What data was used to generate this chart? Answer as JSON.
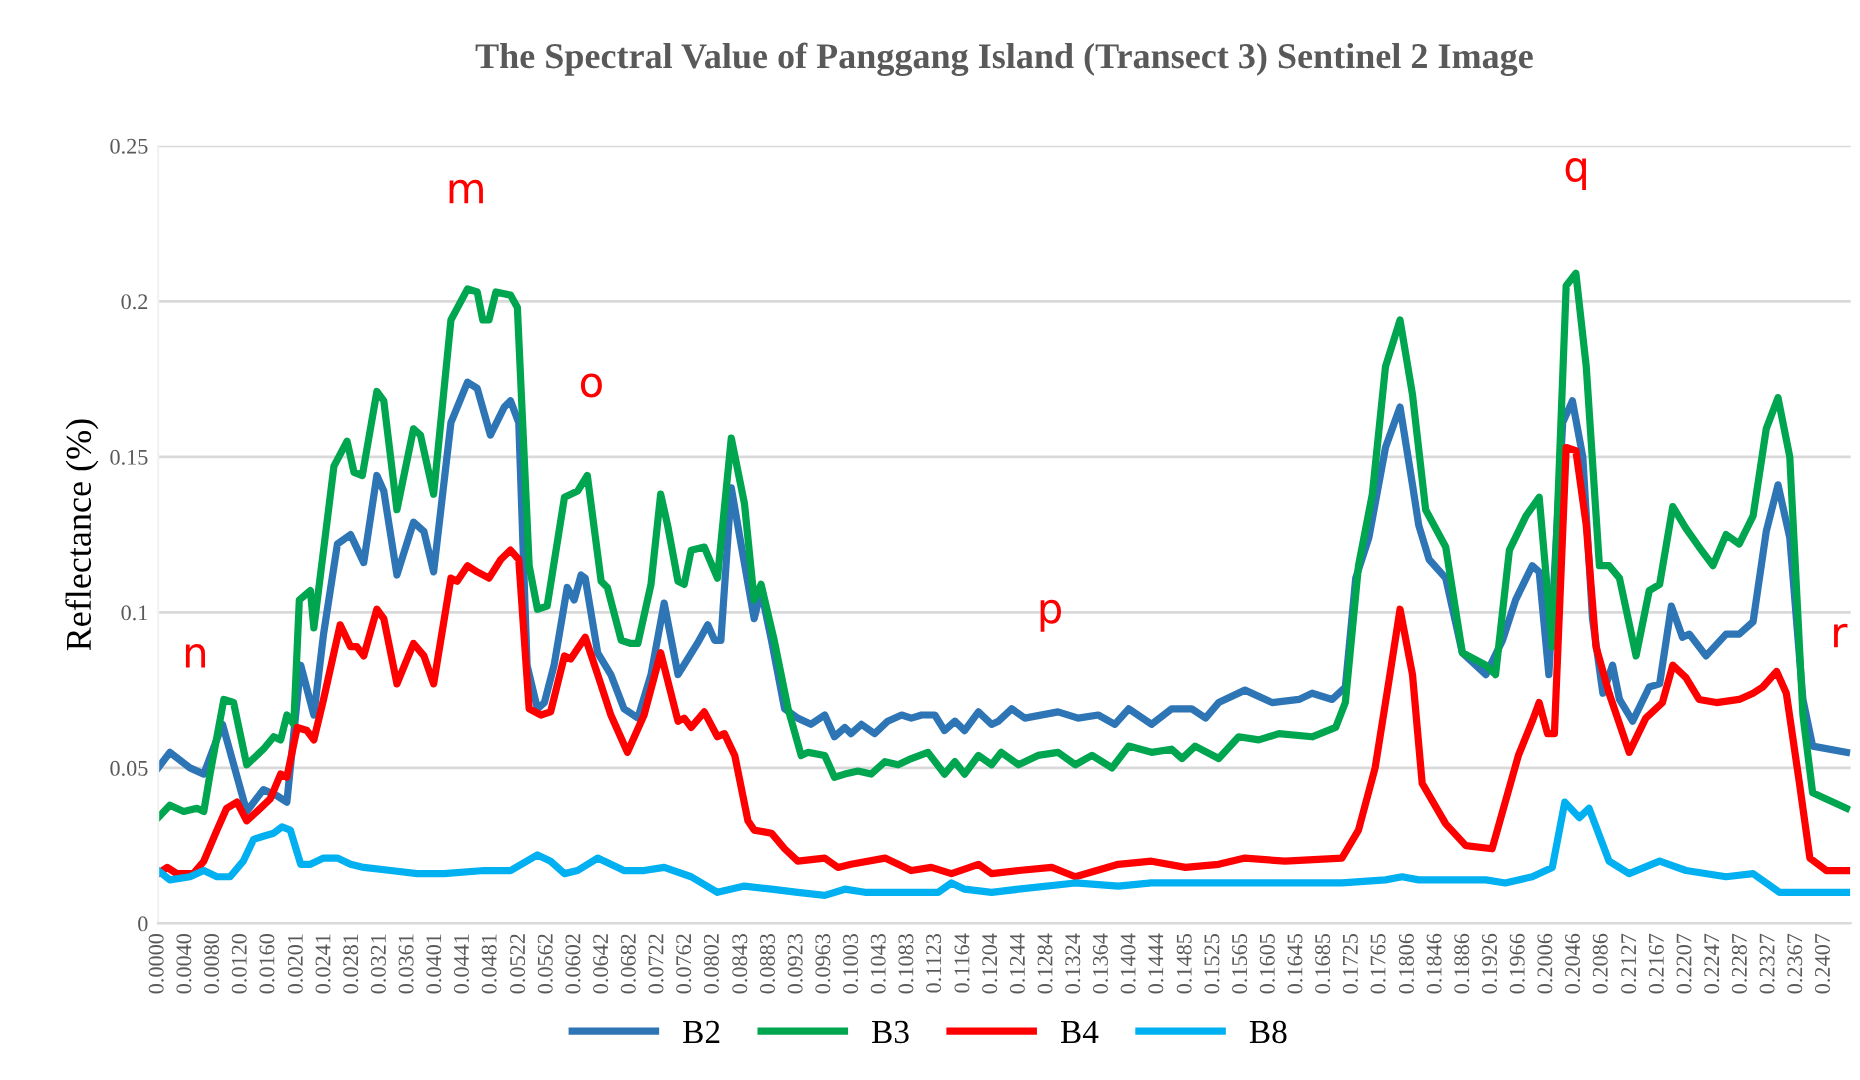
{
  "chart_data": {
    "type": "line",
    "title": "The Spectral Value of Panggang Island (Transect 3) Sentinel 2 Image",
    "ylabel": "Reflectance (%)",
    "xlim": [
      0,
      0.2445
    ],
    "ylim": [
      0,
      0.25
    ],
    "yticks": [
      {
        "value": 0,
        "label": "0"
      },
      0.05,
      0.1,
      0.15,
      0.2,
      0.25
    ],
    "xticks": [
      {
        "value": 0.0,
        "label": "0.0000"
      },
      {
        "value": 0.004,
        "label": "0.0040"
      },
      {
        "value": 0.008,
        "label": "0.0080"
      },
      {
        "value": 0.012,
        "label": "0.0120"
      },
      {
        "value": 0.016,
        "label": "0.0160"
      },
      {
        "value": 0.0201,
        "label": "0.0201"
      },
      {
        "value": 0.0241,
        "label": "0.0241"
      },
      {
        "value": 0.0281,
        "label": "0.0281"
      },
      {
        "value": 0.0321,
        "label": "0.0321"
      },
      {
        "value": 0.0361,
        "label": "0.0361"
      },
      {
        "value": 0.0401,
        "label": "0.0401"
      },
      {
        "value": 0.0441,
        "label": "0.0441"
      },
      {
        "value": 0.0481,
        "label": "0.0481"
      },
      {
        "value": 0.0522,
        "label": "0.0522"
      },
      {
        "value": 0.0562,
        "label": "0.0562"
      },
      {
        "value": 0.0602,
        "label": "0.0602"
      },
      {
        "value": 0.0642,
        "label": "0.0642"
      },
      {
        "value": 0.0682,
        "label": "0.0682"
      },
      {
        "value": 0.0722,
        "label": "0.0722"
      },
      {
        "value": 0.0762,
        "label": "0.0762"
      },
      {
        "value": 0.0802,
        "label": "0.0802"
      },
      {
        "value": 0.0843,
        "label": "0.0843"
      },
      {
        "value": 0.0883,
        "label": "0.0883"
      },
      {
        "value": 0.0923,
        "label": "0.0923"
      },
      {
        "value": 0.0963,
        "label": "0.0963"
      },
      {
        "value": 0.1003,
        "label": "0.1003"
      },
      {
        "value": 0.1043,
        "label": "0.1043"
      },
      {
        "value": 0.1083,
        "label": "0.1083"
      },
      {
        "value": 0.1123,
        "label": "0.1123"
      },
      {
        "value": 0.1164,
        "label": "0.1164"
      },
      {
        "value": 0.1204,
        "label": "0.1204"
      },
      {
        "value": 0.1244,
        "label": "0.1244"
      },
      {
        "value": 0.1284,
        "label": "0.1284"
      },
      {
        "value": 0.1324,
        "label": "0.1324"
      },
      {
        "value": 0.1364,
        "label": "0.1364"
      },
      {
        "value": 0.1404,
        "label": "0.1404"
      },
      {
        "value": 0.1444,
        "label": "0.1444"
      },
      {
        "value": 0.1485,
        "label": "0.1485"
      },
      {
        "value": 0.1525,
        "label": "0.1525"
      },
      {
        "value": 0.1565,
        "label": "0.1565"
      },
      {
        "value": 0.1605,
        "label": "0.1605"
      },
      {
        "value": 0.1645,
        "label": "0.1645"
      },
      {
        "value": 0.1685,
        "label": "0.1685"
      },
      {
        "value": 0.1725,
        "label": "0.1725"
      },
      {
        "value": 0.1765,
        "label": "0.1765"
      },
      {
        "value": 0.1806,
        "label": "0.1806"
      },
      {
        "value": 0.1846,
        "label": "0.1846"
      },
      {
        "value": 0.1886,
        "label": "0.1886"
      },
      {
        "value": 0.1926,
        "label": "0.1926"
      },
      {
        "value": 0.1966,
        "label": "0.1966"
      },
      {
        "value": 0.2006,
        "label": "0.2006"
      },
      {
        "value": 0.2046,
        "label": "0.2046"
      },
      {
        "value": 0.2086,
        "label": "0.2086"
      },
      {
        "value": 0.2127,
        "label": "0.2127"
      },
      {
        "value": 0.2167,
        "label": "0.2167"
      },
      {
        "value": 0.2207,
        "label": "0.2207"
      },
      {
        "value": 0.2247,
        "label": "0.2247"
      },
      {
        "value": 0.2287,
        "label": "0.2287"
      },
      {
        "value": 0.2327,
        "label": "0.2327"
      },
      {
        "value": 0.2367,
        "label": "0.2367"
      },
      {
        "value": 0.2407,
        "label": "0.2407"
      }
    ],
    "grid": "y",
    "legend": "bottom",
    "marker": "none",
    "line_style": "solid",
    "annotations": [
      "m",
      "n",
      "o",
      "p",
      "q",
      "r"
    ],
    "series": [
      {
        "name": "B2",
        "color": "#2e75b6",
        "x": [
          0,
          0.0017,
          0.0046,
          0.0066,
          0.0093,
          0.0128,
          0.0152,
          0.0172,
          0.0186,
          0.0206,
          0.0225,
          0.0239,
          0.0259,
          0.0278,
          0.0297,
          0.0316,
          0.0326,
          0.0345,
          0.0369,
          0.0384,
          0.0398,
          0.0423,
          0.0447,
          0.0461,
          0.048,
          0.05,
          0.0509,
          0.0521,
          0.0533,
          0.0548,
          0.0558,
          0.0572,
          0.0591,
          0.0601,
          0.0611,
          0.0617,
          0.0635,
          0.0654,
          0.0673,
          0.0693,
          0.0712,
          0.0731,
          0.0751,
          0.0765,
          0.0779,
          0.0794,
          0.0804,
          0.0813,
          0.0828,
          0.0842,
          0.0861,
          0.0871,
          0.0886,
          0.0905,
          0.0924,
          0.0943,
          0.0963,
          0.0977,
          0.0992,
          0.1001,
          0.1016,
          0.1035,
          0.1054,
          0.1074,
          0.1088,
          0.1103,
          0.1122,
          0.1136,
          0.1151,
          0.1165,
          0.1185,
          0.1204,
          0.1214,
          0.1233,
          0.1252,
          0.13,
          0.1329,
          0.1358,
          0.1382,
          0.1402,
          0.1435,
          0.1464,
          0.1493,
          0.1513,
          0.1532,
          0.157,
          0.1609,
          0.1648,
          0.1667,
          0.1696,
          0.1715,
          0.173,
          0.1749,
          0.1773,
          0.1794,
          0.1812,
          0.1821,
          0.1836,
          0.186,
          0.1884,
          0.1918,
          0.1942,
          0.1961,
          0.1985,
          0.1995,
          0.2009,
          0.2029,
          0.2043,
          0.2058,
          0.2072,
          0.2087,
          0.2101,
          0.2111,
          0.213,
          0.2154,
          0.2169,
          0.2186,
          0.2202,
          0.2212,
          0.2236,
          0.2265,
          0.2284,
          0.2304,
          0.2323,
          0.234,
          0.2357,
          0.2376,
          0.239,
          0.2439
        ],
        "values": [
          0.05,
          0.055,
          0.05,
          0.048,
          0.064,
          0.036,
          0.043,
          0.041,
          0.039,
          0.083,
          0.067,
          0.093,
          0.122,
          0.125,
          0.116,
          0.144,
          0.139,
          0.112,
          0.129,
          0.126,
          0.113,
          0.161,
          0.174,
          0.172,
          0.157,
          0.166,
          0.168,
          0.161,
          0.083,
          0.069,
          0.071,
          0.083,
          0.108,
          0.104,
          0.112,
          0.111,
          0.087,
          0.08,
          0.069,
          0.066,
          0.08,
          0.103,
          0.08,
          0.085,
          0.09,
          0.096,
          0.091,
          0.091,
          0.14,
          0.122,
          0.098,
          0.107,
          0.091,
          0.069,
          0.066,
          0.064,
          0.067,
          0.06,
          0.063,
          0.061,
          0.064,
          0.061,
          0.065,
          0.067,
          0.066,
          0.067,
          0.067,
          0.062,
          0.065,
          0.062,
          0.068,
          0.064,
          0.065,
          0.069,
          0.066,
          0.068,
          0.066,
          0.067,
          0.064,
          0.069,
          0.064,
          0.069,
          0.069,
          0.066,
          0.071,
          0.075,
          0.071,
          0.072,
          0.074,
          0.072,
          0.076,
          0.111,
          0.124,
          0.153,
          0.166,
          0.141,
          0.128,
          0.117,
          0.111,
          0.087,
          0.08,
          0.091,
          0.104,
          0.115,
          0.113,
          0.08,
          0.161,
          0.168,
          0.15,
          0.098,
          0.074,
          0.083,
          0.072,
          0.065,
          0.076,
          0.077,
          0.102,
          0.092,
          0.093,
          0.086,
          0.093,
          0.093,
          0.097,
          0.126,
          0.141,
          0.124,
          0.072,
          0.057,
          0.055
        ]
      },
      {
        "name": "B3",
        "color": "#00a64f",
        "x": [
          0,
          0.0017,
          0.0037,
          0.0056,
          0.0066,
          0.0075,
          0.0095,
          0.0109,
          0.0128,
          0.0152,
          0.0167,
          0.0177,
          0.0186,
          0.0196,
          0.0204,
          0.022,
          0.0225,
          0.0239,
          0.0254,
          0.0273,
          0.0283,
          0.0295,
          0.0316,
          0.0326,
          0.0345,
          0.0369,
          0.0379,
          0.0398,
          0.0423,
          0.0447,
          0.0461,
          0.0469,
          0.0478,
          0.0488,
          0.0509,
          0.0519,
          0.0536,
          0.0548,
          0.0562,
          0.0587,
          0.0606,
          0.062,
          0.064,
          0.0649,
          0.0669,
          0.0683,
          0.0693,
          0.0712,
          0.0726,
          0.0736,
          0.0751,
          0.076,
          0.077,
          0.0789,
          0.0808,
          0.0828,
          0.0847,
          0.0861,
          0.0871,
          0.089,
          0.091,
          0.0929,
          0.0939,
          0.0963,
          0.0977,
          0.0992,
          0.1011,
          0.103,
          0.105,
          0.1069,
          0.1088,
          0.1112,
          0.1136,
          0.1151,
          0.1165,
          0.1185,
          0.1204,
          0.1218,
          0.1243,
          0.1271,
          0.13,
          0.1325,
          0.1349,
          0.1378,
          0.1402,
          0.1435,
          0.1464,
          0.1479,
          0.1498,
          0.1532,
          0.1561,
          0.159,
          0.1619,
          0.1667,
          0.1701,
          0.1715,
          0.1734,
          0.1754,
          0.1773,
          0.1794,
          0.1812,
          0.1831,
          0.186,
          0.1884,
          0.1918,
          0.1932,
          0.1952,
          0.1976,
          0.1995,
          0.2014,
          0.2034,
          0.2048,
          0.2063,
          0.2082,
          0.2096,
          0.2111,
          0.2135,
          0.2154,
          0.2169,
          0.2188,
          0.2207,
          0.2226,
          0.2246,
          0.2265,
          0.2284,
          0.2304,
          0.2323,
          0.234,
          0.2357,
          0.2376,
          0.239,
          0.2439
        ],
        "values": [
          0.034,
          0.038,
          0.036,
          0.037,
          0.036,
          0.048,
          0.072,
          0.071,
          0.051,
          0.056,
          0.06,
          0.059,
          0.067,
          0.064,
          0.104,
          0.107,
          0.095,
          0.12,
          0.147,
          0.155,
          0.145,
          0.144,
          0.171,
          0.168,
          0.133,
          0.159,
          0.157,
          0.138,
          0.194,
          0.204,
          0.203,
          0.194,
          0.194,
          0.203,
          0.202,
          0.198,
          0.115,
          0.101,
          0.102,
          0.137,
          0.139,
          0.144,
          0.11,
          0.108,
          0.091,
          0.09,
          0.09,
          0.109,
          0.138,
          0.128,
          0.11,
          0.109,
          0.12,
          0.121,
          0.111,
          0.156,
          0.135,
          0.104,
          0.109,
          0.091,
          0.069,
          0.054,
          0.055,
          0.054,
          0.047,
          0.048,
          0.049,
          0.048,
          0.052,
          0.051,
          0.053,
          0.055,
          0.048,
          0.052,
          0.048,
          0.054,
          0.051,
          0.055,
          0.051,
          0.054,
          0.055,
          0.051,
          0.054,
          0.05,
          0.057,
          0.055,
          0.056,
          0.053,
          0.057,
          0.053,
          0.06,
          0.059,
          0.061,
          0.06,
          0.063,
          0.071,
          0.115,
          0.138,
          0.179,
          0.194,
          0.17,
          0.133,
          0.121,
          0.087,
          0.083,
          0.08,
          0.12,
          0.131,
          0.137,
          0.089,
          0.205,
          0.209,
          0.179,
          0.115,
          0.115,
          0.111,
          0.086,
          0.107,
          0.109,
          0.134,
          0.127,
          0.121,
          0.115,
          0.125,
          0.122,
          0.131,
          0.159,
          0.169,
          0.15,
          0.067,
          0.042,
          0.037
        ]
      },
      {
        "name": "B4",
        "color": "#ff0000",
        "x": [
          0,
          0.0013,
          0.0027,
          0.0051,
          0.0066,
          0.0085,
          0.0099,
          0.0114,
          0.0128,
          0.0143,
          0.0162,
          0.0177,
          0.0186,
          0.0201,
          0.0215,
          0.0225,
          0.0239,
          0.0263,
          0.0278,
          0.0287,
          0.0297,
          0.0316,
          0.0326,
          0.0345,
          0.0369,
          0.0384,
          0.0398,
          0.0423,
          0.0432,
          0.0447,
          0.0461,
          0.0478,
          0.0495,
          0.0509,
          0.0521,
          0.0536,
          0.0553,
          0.0567,
          0.0587,
          0.0596,
          0.0617,
          0.0635,
          0.0654,
          0.0678,
          0.0702,
          0.0726,
          0.0751,
          0.076,
          0.077,
          0.0789,
          0.0808,
          0.0818,
          0.0833,
          0.0852,
          0.0861,
          0.0886,
          0.0905,
          0.0924,
          0.0963,
          0.0982,
          0.1001,
          0.105,
          0.1088,
          0.1117,
          0.1146,
          0.1185,
          0.1204,
          0.1243,
          0.1291,
          0.1325,
          0.1387,
          0.1435,
          0.1484,
          0.1532,
          0.157,
          0.1628,
          0.171,
          0.1734,
          0.1758,
          0.1778,
          0.1794,
          0.1812,
          0.1826,
          0.186,
          0.1889,
          0.1927,
          0.1946,
          0.1965,
          0.1985,
          0.1995,
          0.2007,
          0.2017,
          0.2034,
          0.2048,
          0.2063,
          0.2077,
          0.2096,
          0.2125,
          0.2149,
          0.2173,
          0.2188,
          0.2207,
          0.2226,
          0.2251,
          0.2284,
          0.2304,
          0.2318,
          0.2338,
          0.2352,
          0.2371,
          0.2386,
          0.241,
          0.2439
        ],
        "values": [
          0.016,
          0.018,
          0.016,
          0.016,
          0.02,
          0.03,
          0.037,
          0.039,
          0.033,
          0.036,
          0.04,
          0.048,
          0.047,
          0.063,
          0.062,
          0.059,
          0.072,
          0.096,
          0.089,
          0.089,
          0.086,
          0.101,
          0.098,
          0.077,
          0.09,
          0.086,
          0.077,
          0.111,
          0.11,
          0.115,
          0.113,
          0.111,
          0.117,
          0.12,
          0.117,
          0.069,
          0.067,
          0.068,
          0.086,
          0.085,
          0.092,
          0.08,
          0.067,
          0.055,
          0.067,
          0.087,
          0.065,
          0.066,
          0.063,
          0.068,
          0.06,
          0.061,
          0.054,
          0.033,
          0.03,
          0.029,
          0.024,
          0.02,
          0.021,
          0.018,
          0.019,
          0.021,
          0.017,
          0.018,
          0.016,
          0.019,
          0.016,
          0.017,
          0.018,
          0.015,
          0.019,
          0.02,
          0.018,
          0.019,
          0.021,
          0.02,
          0.021,
          0.03,
          0.05,
          0.078,
          0.101,
          0.08,
          0.045,
          0.032,
          0.025,
          0.024,
          0.039,
          0.054,
          0.065,
          0.071,
          0.061,
          0.061,
          0.153,
          0.152,
          0.128,
          0.089,
          0.074,
          0.055,
          0.066,
          0.071,
          0.083,
          0.079,
          0.072,
          0.071,
          0.072,
          0.074,
          0.076,
          0.081,
          0.074,
          0.045,
          0.021,
          0.017,
          0.017
        ]
      },
      {
        "name": "B8",
        "color": "#00b0f0",
        "x": [
          0,
          0.0017,
          0.0046,
          0.0066,
          0.0085,
          0.0104,
          0.0123,
          0.0138,
          0.0152,
          0.0167,
          0.0179,
          0.0191,
          0.0206,
          0.022,
          0.0239,
          0.0259,
          0.0278,
          0.0297,
          0.0336,
          0.0374,
          0.0413,
          0.0471,
          0.0509,
          0.0548,
          0.0567,
          0.0587,
          0.0606,
          0.0635,
          0.0673,
          0.0702,
          0.0731,
          0.077,
          0.0808,
          0.0847,
          0.0886,
          0.0924,
          0.0963,
          0.0992,
          0.1021,
          0.1088,
          0.1127,
          0.1146,
          0.1165,
          0.1204,
          0.1243,
          0.1325,
          0.1387,
          0.1435,
          0.1532,
          0.1628,
          0.171,
          0.1773,
          0.1797,
          0.1821,
          0.1918,
          0.1946,
          0.1985,
          0.2014,
          0.2032,
          0.2053,
          0.2067,
          0.2096,
          0.2125,
          0.2169,
          0.2207,
          0.2265,
          0.2304,
          0.2342,
          0.239,
          0.2439
        ],
        "values": [
          0.017,
          0.014,
          0.015,
          0.017,
          0.015,
          0.015,
          0.02,
          0.027,
          0.028,
          0.029,
          0.031,
          0.03,
          0.019,
          0.019,
          0.021,
          0.021,
          0.019,
          0.018,
          0.017,
          0.016,
          0.016,
          0.017,
          0.017,
          0.022,
          0.02,
          0.016,
          0.017,
          0.021,
          0.017,
          0.017,
          0.018,
          0.015,
          0.01,
          0.012,
          0.011,
          0.01,
          0.009,
          0.011,
          0.01,
          0.01,
          0.01,
          0.013,
          0.011,
          0.01,
          0.011,
          0.013,
          0.012,
          0.013,
          0.013,
          0.013,
          0.013,
          0.014,
          0.015,
          0.014,
          0.014,
          0.013,
          0.015,
          0.018,
          0.039,
          0.034,
          0.037,
          0.02,
          0.016,
          0.02,
          0.017,
          0.015,
          0.016,
          0.01,
          0.01,
          0.01
        ]
      }
    ]
  }
}
